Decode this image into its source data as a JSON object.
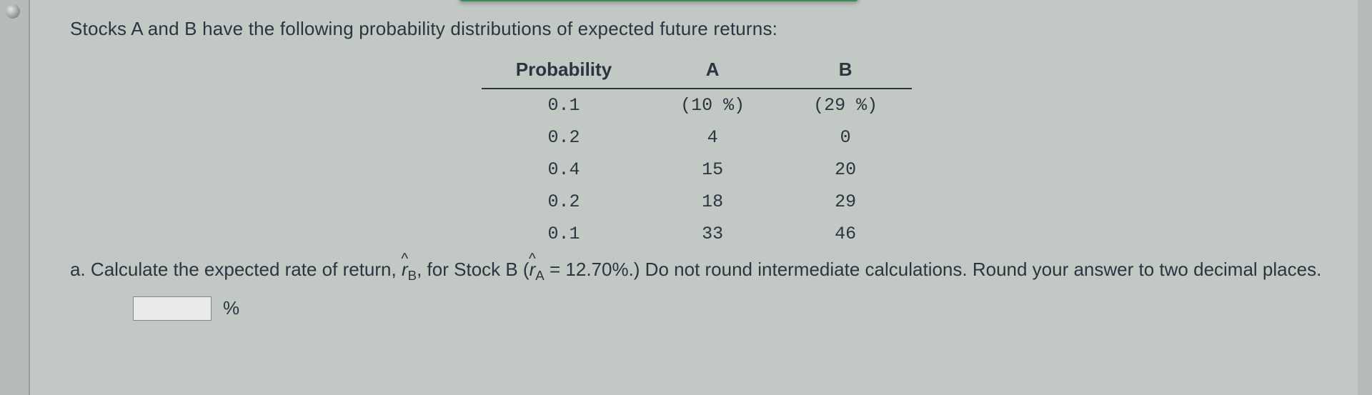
{
  "intro": "Stocks A and B have the following probability distributions of expected future returns:",
  "table": {
    "columns": [
      "Probability",
      "A",
      "B"
    ],
    "rows": [
      [
        "0.1",
        "(10 %)",
        "(29 %)"
      ],
      [
        "0.2",
        "4",
        "0"
      ],
      [
        "0.4",
        "15",
        "20"
      ],
      [
        "0.2",
        "18",
        "29"
      ],
      [
        "0.1",
        "33",
        "46"
      ]
    ]
  },
  "question": {
    "label": "a.",
    "pre": "Calculate the expected rate of return, ",
    "symbol_B_letter": "r",
    "symbol_B_sub": "B",
    "mid1": ", for Stock B (",
    "symbol_A_letter": "r",
    "symbol_A_sub": "A",
    "eq": " = 12.70%.) Do not round intermediate calculations. Round your answer to two decimal places.",
    "unit": "%"
  },
  "style": {
    "background_color": "#c2c8c4",
    "text_color": "#2a3540",
    "accent_bar_color": "#3a8a5a",
    "table_border_color": "#2a3540",
    "input_bg": "#e9ece9",
    "input_border": "#7e8b86",
    "font_body_size_pt": 20,
    "font_mono": "Courier New"
  }
}
